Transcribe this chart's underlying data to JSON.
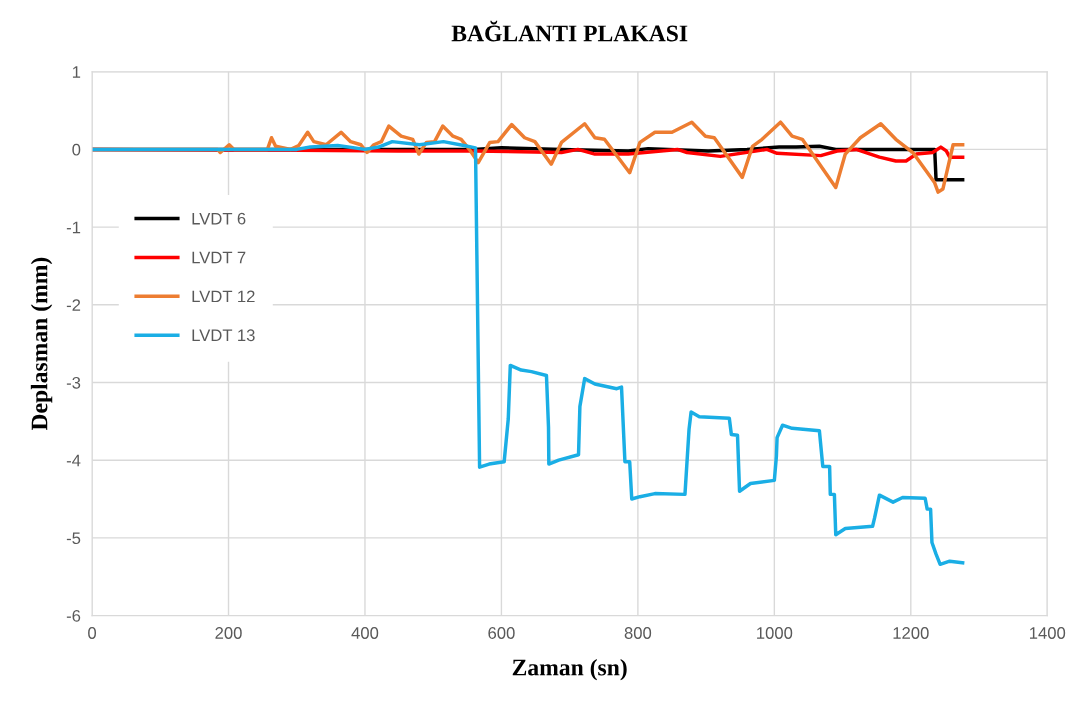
{
  "chart_data": {
    "type": "line",
    "title": "BAĞLANTI PLAKASI",
    "xlabel": "Zaman (sn)",
    "ylabel": "Deplasman (mm)",
    "xlim": [
      0,
      1400
    ],
    "xticks": [
      0,
      200,
      400,
      600,
      800,
      1000,
      1200,
      1400
    ],
    "ylim": [
      -6,
      1
    ],
    "yticks": [
      -6,
      -5,
      -4,
      -3,
      -2,
      -1,
      0,
      1
    ],
    "grid": true,
    "legend": "left",
    "marker": "none",
    "line_style": "solid",
    "series": [
      {
        "name": "LVDT 6",
        "color": "#000000",
        "x": [
          0,
          200,
          400,
          560,
          600,
          688,
          786,
          815,
          903,
          960,
          1007,
          1032,
          1066,
          1090,
          1222,
          1235,
          1237,
          1276
        ],
        "values": [
          0,
          0,
          0,
          0,
          0.02,
          0,
          -0.02,
          0.01,
          -0.02,
          0,
          0.03,
          0.03,
          0.04,
          0,
          0,
          0,
          -0.39,
          -0.39
        ]
      },
      {
        "name": "LVDT 7",
        "color": "#ff0000",
        "x": [
          0,
          200,
          300,
          450,
          560,
          688,
          712,
          737,
          786,
          858,
          872,
          921,
          989,
          1004,
          1068,
          1092,
          1120,
          1154,
          1178,
          1193,
          1208,
          1232,
          1244,
          1252,
          1257,
          1276
        ],
        "values": [
          0,
          -0.01,
          -0.01,
          -0.02,
          -0.02,
          -0.04,
          0,
          -0.06,
          -0.06,
          0,
          -0.04,
          -0.09,
          0,
          -0.05,
          -0.08,
          -0.02,
          0,
          -0.1,
          -0.15,
          -0.15,
          -0.06,
          -0.04,
          0.03,
          -0.02,
          -0.1,
          -0.1
        ]
      },
      {
        "name": "LVDT 12",
        "color": "#ed7d31",
        "x": [
          0,
          184,
          188,
          201,
          208,
          257,
          263,
          269,
          291,
          303,
          316,
          325,
          343,
          365,
          379,
          394,
          403,
          413,
          424,
          435,
          453,
          470,
          479,
          490,
          502,
          514,
          529,
          541,
          553,
          566,
          583,
          595,
          615,
          634,
          649,
          673,
          688,
          722,
          737,
          751,
          788,
          803,
          825,
          850,
          879,
          899,
          912,
          953,
          968,
          982,
          1009,
          1026,
          1041,
          1090,
          1104,
          1126,
          1156,
          1178,
          1203,
          1235,
          1240,
          1247,
          1262,
          1276
        ],
        "values": [
          0,
          0,
          -0.04,
          0.06,
          0,
          0,
          0.15,
          0.04,
          0,
          0.05,
          0.22,
          0.1,
          0.06,
          0.22,
          0.1,
          0.06,
          -0.04,
          0.06,
          0.1,
          0.3,
          0.17,
          0.13,
          -0.06,
          0.09,
          0.1,
          0.3,
          0.17,
          0.13,
          0,
          -0.17,
          0.09,
          0.1,
          0.32,
          0.15,
          0.1,
          -0.19,
          0.09,
          0.33,
          0.15,
          0.13,
          -0.3,
          0.09,
          0.22,
          0.22,
          0.35,
          0.17,
          0.15,
          -0.36,
          0.04,
          0.13,
          0.35,
          0.17,
          0.13,
          -0.49,
          -0.06,
          0.15,
          0.33,
          0.13,
          -0.04,
          -0.43,
          -0.55,
          -0.51,
          0.06,
          0.06
        ]
      },
      {
        "name": "LVDT 13",
        "color": "#1aaee5",
        "x": [
          0,
          200,
          300,
          320,
          360,
          400,
          420,
          440,
          480,
          515,
          545,
          562,
          568,
          582,
          604,
          610,
          613,
          629,
          644,
          666,
          669,
          669.5,
          684,
          713,
          715,
          722,
          737,
          769,
          776,
          779,
          781,
          788,
          791,
          803,
          825,
          869,
          875,
          878,
          890,
          934,
          937,
          946,
          949,
          965,
          1000,
          1003,
          1004,
          1012,
          1026,
          1066,
          1071,
          1081,
          1082,
          1088,
          1090,
          1104,
          1144,
          1147,
          1154,
          1174,
          1188,
          1221,
          1224,
          1229,
          1231,
          1237,
          1243,
          1257,
          1276
        ],
        "values": [
          0,
          0,
          0,
          0.03,
          0.05,
          0,
          0.03,
          0.1,
          0.06,
          0.1,
          0.05,
          0.02,
          -4.09,
          -4.05,
          -4.02,
          -3.47,
          -2.78,
          -2.84,
          -2.86,
          -2.91,
          -3.58,
          -4.05,
          -4.0,
          -3.93,
          -3.31,
          -2.95,
          -3.02,
          -3.08,
          -3.06,
          -3.64,
          -4.02,
          -4.02,
          -4.5,
          -4.47,
          -4.43,
          -4.44,
          -3.6,
          -3.38,
          -3.44,
          -3.46,
          -3.67,
          -3.68,
          -4.4,
          -4.3,
          -4.26,
          -3.95,
          -3.71,
          -3.55,
          -3.59,
          -3.62,
          -4.08,
          -4.08,
          -4.44,
          -4.44,
          -4.96,
          -4.88,
          -4.85,
          -4.74,
          -4.45,
          -4.54,
          -4.48,
          -4.49,
          -4.63,
          -4.63,
          -5.06,
          -5.21,
          -5.34,
          -5.3,
          -5.32
        ]
      }
    ]
  }
}
